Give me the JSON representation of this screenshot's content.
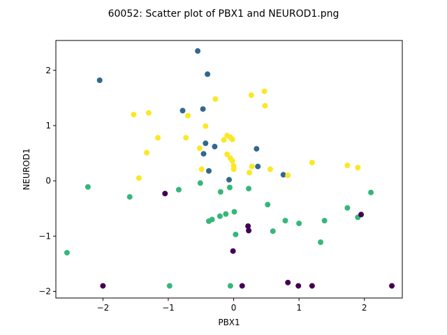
{
  "chart_data": {
    "type": "scatter",
    "title": "60052: Scatter plot of PBX1 and NEUROD1.png",
    "xlabel": "PBX1",
    "ylabel": "NEUROD1",
    "xlim": [
      -2.72,
      2.58
    ],
    "ylim": [
      -2.12,
      2.54
    ],
    "xticks": [
      -2,
      -1,
      0,
      1,
      2
    ],
    "yticks": [
      -2,
      -1,
      0,
      1,
      2
    ],
    "xtick_labels": [
      "−2",
      "−1",
      "0",
      "1",
      "2"
    ],
    "ytick_labels": [
      "−2",
      "−1",
      "0",
      "1",
      "2"
    ],
    "grid": false,
    "legend": "none",
    "series": [
      {
        "color": "#31688e",
        "points": [
          [
            -0.55,
            2.35
          ],
          [
            -0.4,
            1.93
          ],
          [
            -2.05,
            1.82
          ],
          [
            -0.78,
            1.27
          ],
          [
            -0.47,
            1.3
          ],
          [
            -0.43,
            0.68
          ],
          [
            -0.46,
            0.49
          ],
          [
            -0.29,
            0.62
          ],
          [
            -0.38,
            0.18
          ],
          [
            0.35,
            0.58
          ],
          [
            0.37,
            0.26
          ],
          [
            0.76,
            0.11
          ],
          [
            -0.07,
            0.02
          ]
        ]
      },
      {
        "color": "#fde725",
        "points": [
          [
            -1.53,
            1.2
          ],
          [
            -1.3,
            1.23
          ],
          [
            -1.16,
            0.78
          ],
          [
            -0.7,
            1.18
          ],
          [
            -0.73,
            0.78
          ],
          [
            -0.43,
            0.99
          ],
          [
            -0.28,
            1.48
          ],
          [
            -0.52,
            0.59
          ],
          [
            -0.49,
            0.21
          ],
          [
            -1.45,
            0.05
          ],
          [
            -1.33,
            0.51
          ],
          [
            -0.15,
            0.74
          ],
          [
            -0.1,
            0.82
          ],
          [
            -0.05,
            0.79
          ],
          [
            -0.02,
            0.75
          ],
          [
            -0.1,
            0.48
          ],
          [
            -0.05,
            0.41
          ],
          [
            -0.02,
            0.36
          ],
          [
            0.0,
            0.27
          ],
          [
            0.0,
            0.21
          ],
          [
            0.24,
            0.15
          ],
          [
            0.28,
            0.26
          ],
          [
            0.27,
            1.55
          ],
          [
            0.47,
            1.62
          ],
          [
            0.48,
            1.36
          ],
          [
            0.56,
            0.21
          ],
          [
            0.83,
            0.1
          ],
          [
            1.2,
            0.33
          ],
          [
            1.74,
            0.28
          ],
          [
            1.9,
            0.24
          ]
        ]
      },
      {
        "color": "#35b779",
        "points": [
          [
            -2.55,
            -1.3
          ],
          [
            -2.23,
            -0.11
          ],
          [
            -1.59,
            -0.29
          ],
          [
            -0.84,
            -0.16
          ],
          [
            -0.98,
            -1.9
          ],
          [
            -0.51,
            -0.04
          ],
          [
            -0.38,
            -0.73
          ],
          [
            -0.33,
            -0.7
          ],
          [
            -0.2,
            -0.2
          ],
          [
            -0.21,
            -0.64
          ],
          [
            -0.12,
            -0.6
          ],
          [
            -0.06,
            -0.12
          ],
          [
            -0.05,
            -1.9
          ],
          [
            0.01,
            -0.56
          ],
          [
            0.03,
            -0.97
          ],
          [
            0.23,
            -0.14
          ],
          [
            0.52,
            -0.43
          ],
          [
            0.6,
            -0.91
          ],
          [
            0.79,
            -0.72
          ],
          [
            1.0,
            -0.77
          ],
          [
            1.33,
            -1.11
          ],
          [
            1.39,
            -0.72
          ],
          [
            1.74,
            -0.49
          ],
          [
            1.9,
            -0.66
          ],
          [
            2.1,
            -0.21
          ]
        ]
      },
      {
        "color": "#440154",
        "points": [
          [
            -1.05,
            -0.23
          ],
          [
            -2.0,
            -1.9
          ],
          [
            0.22,
            -0.82
          ],
          [
            0.23,
            -0.9
          ],
          [
            -0.01,
            -1.27
          ],
          [
            0.13,
            -1.9
          ],
          [
            0.83,
            -1.84
          ],
          [
            0.99,
            -1.9
          ],
          [
            1.2,
            -1.9
          ],
          [
            1.95,
            -0.61
          ],
          [
            2.42,
            -1.9
          ]
        ]
      }
    ]
  }
}
